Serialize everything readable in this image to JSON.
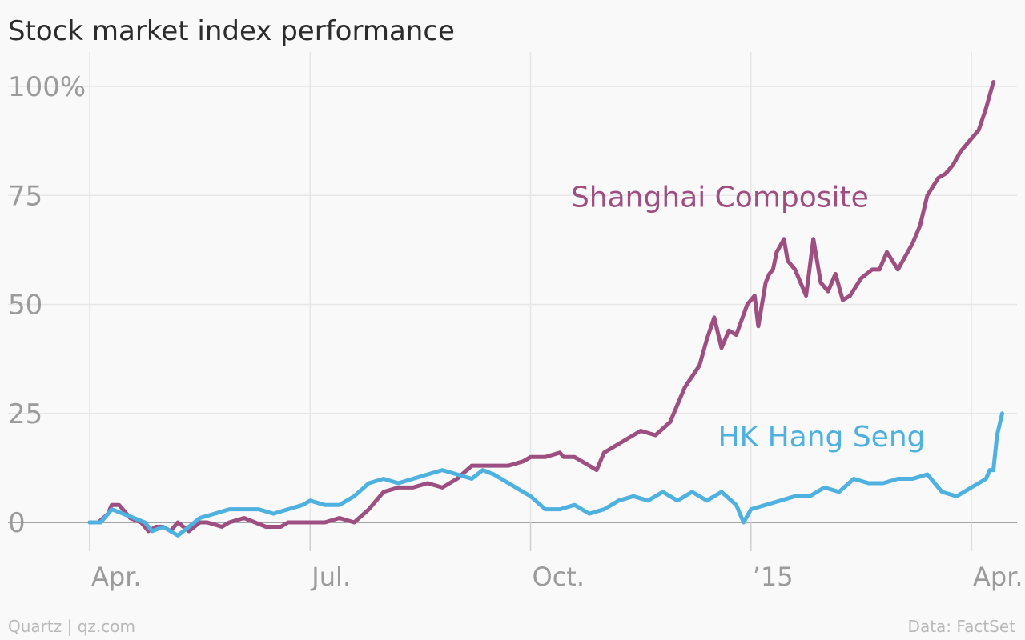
{
  "chart_data": {
    "type": "line",
    "title": "Stock market index performance",
    "xlabel": "",
    "ylabel": "",
    "x_tick_labels": [
      "Apr.",
      "Jul.",
      "Oct.",
      "’15",
      "Apr."
    ],
    "y_tick_labels": [
      "100%",
      "75",
      "50",
      "25",
      "0"
    ],
    "y_tick_values": [
      100,
      75,
      50,
      25,
      0
    ],
    "ylim": [
      -8,
      103
    ],
    "x_tick_months": [
      0,
      3,
      6,
      9,
      12
    ],
    "xlim_months": [
      -0.12,
      12.42
    ],
    "grid": true,
    "source_left": "Quartz | qz.com",
    "source_right": "Data: FactSet",
    "series": [
      {
        "name": "Shanghai Composite",
        "color": "#9e4f82",
        "x_months": [
          0,
          0.12,
          0.25,
          0.3,
          0.4,
          0.55,
          0.7,
          0.8,
          0.9,
          1.0,
          1.1,
          1.2,
          1.35,
          1.5,
          1.6,
          1.8,
          1.9,
          2.1,
          2.4,
          2.6,
          2.7,
          3.0,
          3.2,
          3.4,
          3.6,
          3.8,
          4.0,
          4.2,
          4.4,
          4.6,
          4.8,
          5.0,
          5.2,
          5.4,
          5.5,
          5.7,
          5.9,
          6.0,
          6.2,
          6.4,
          6.45,
          6.6,
          6.8,
          6.9,
          7.0,
          7.2,
          7.5,
          7.7,
          7.9,
          8.1,
          8.3,
          8.4,
          8.5,
          8.6,
          8.7,
          8.8,
          8.95,
          9.05,
          9.1,
          9.2,
          9.25,
          9.3,
          9.35,
          9.45,
          9.5,
          9.6,
          9.75,
          9.85,
          9.95,
          10.05,
          10.15,
          10.25,
          10.35,
          10.5,
          10.65,
          10.75,
          10.85,
          11.0,
          11.1,
          11.2,
          11.3,
          11.4,
          11.55,
          11.65,
          11.75,
          11.85,
          12.0,
          12.1,
          12.2,
          12.3
        ],
        "values": [
          0,
          0,
          2,
          4,
          4,
          1,
          0,
          -2,
          -1,
          -1,
          -2,
          0,
          -2,
          0,
          0,
          -1,
          0,
          1,
          -1,
          -1,
          0,
          0,
          0,
          1,
          0,
          3,
          7,
          8,
          8,
          9,
          8,
          10,
          13,
          13,
          13,
          13,
          14,
          15,
          15,
          16,
          15,
          15,
          13,
          12,
          16,
          18,
          21,
          20,
          23,
          31,
          36,
          42,
          47,
          40,
          44,
          43,
          50,
          52,
          45,
          55,
          57,
          58,
          62,
          65,
          60,
          58,
          52,
          65,
          55,
          53,
          57,
          51,
          52,
          56,
          58,
          58,
          62,
          58,
          61,
          64,
          68,
          75,
          79,
          80,
          82,
          85,
          88,
          90,
          95,
          101
        ]
      },
      {
        "name": "HK Hang Seng",
        "color": "#4fb1e0",
        "x_months": [
          0,
          0.15,
          0.3,
          0.45,
          0.6,
          0.75,
          0.85,
          1.0,
          1.2,
          1.35,
          1.5,
          1.7,
          1.9,
          2.1,
          2.3,
          2.5,
          2.7,
          2.9,
          3.0,
          3.2,
          3.4,
          3.6,
          3.8,
          4.0,
          4.2,
          4.4,
          4.6,
          4.8,
          5.0,
          5.2,
          5.35,
          5.5,
          5.7,
          5.9,
          6.0,
          6.2,
          6.4,
          6.6,
          6.8,
          7.0,
          7.2,
          7.4,
          7.6,
          7.8,
          8.0,
          8.2,
          8.4,
          8.6,
          8.8,
          8.9,
          9.0,
          9.2,
          9.4,
          9.6,
          9.8,
          10.0,
          10.2,
          10.4,
          10.6,
          10.8,
          11.0,
          11.2,
          11.4,
          11.6,
          11.8,
          12.0,
          12.1,
          12.2,
          12.25,
          12.3,
          12.35,
          12.42
        ],
        "values": [
          0,
          0,
          3,
          2,
          1,
          0,
          -2,
          -1,
          -3,
          -1,
          1,
          2,
          3,
          3,
          3,
          2,
          3,
          4,
          5,
          4,
          4,
          6,
          9,
          10,
          9,
          10,
          11,
          12,
          11,
          10,
          12,
          11,
          9,
          7,
          6,
          3,
          3,
          4,
          2,
          3,
          5,
          6,
          5,
          7,
          5,
          7,
          5,
          7,
          4,
          0,
          3,
          4,
          5,
          6,
          6,
          8,
          7,
          10,
          9,
          9,
          10,
          10,
          11,
          7,
          6,
          8,
          9,
          10,
          12,
          12,
          20,
          25
        ]
      }
    ],
    "annotations": [
      {
        "text": "Shanghai Composite",
        "x_month": 6.55,
        "y": 75,
        "color": "#9e4f82"
      },
      {
        "text": "HK Hang Seng",
        "x_month": 8.55,
        "y": 20,
        "color": "#4fb1e0"
      }
    ]
  }
}
